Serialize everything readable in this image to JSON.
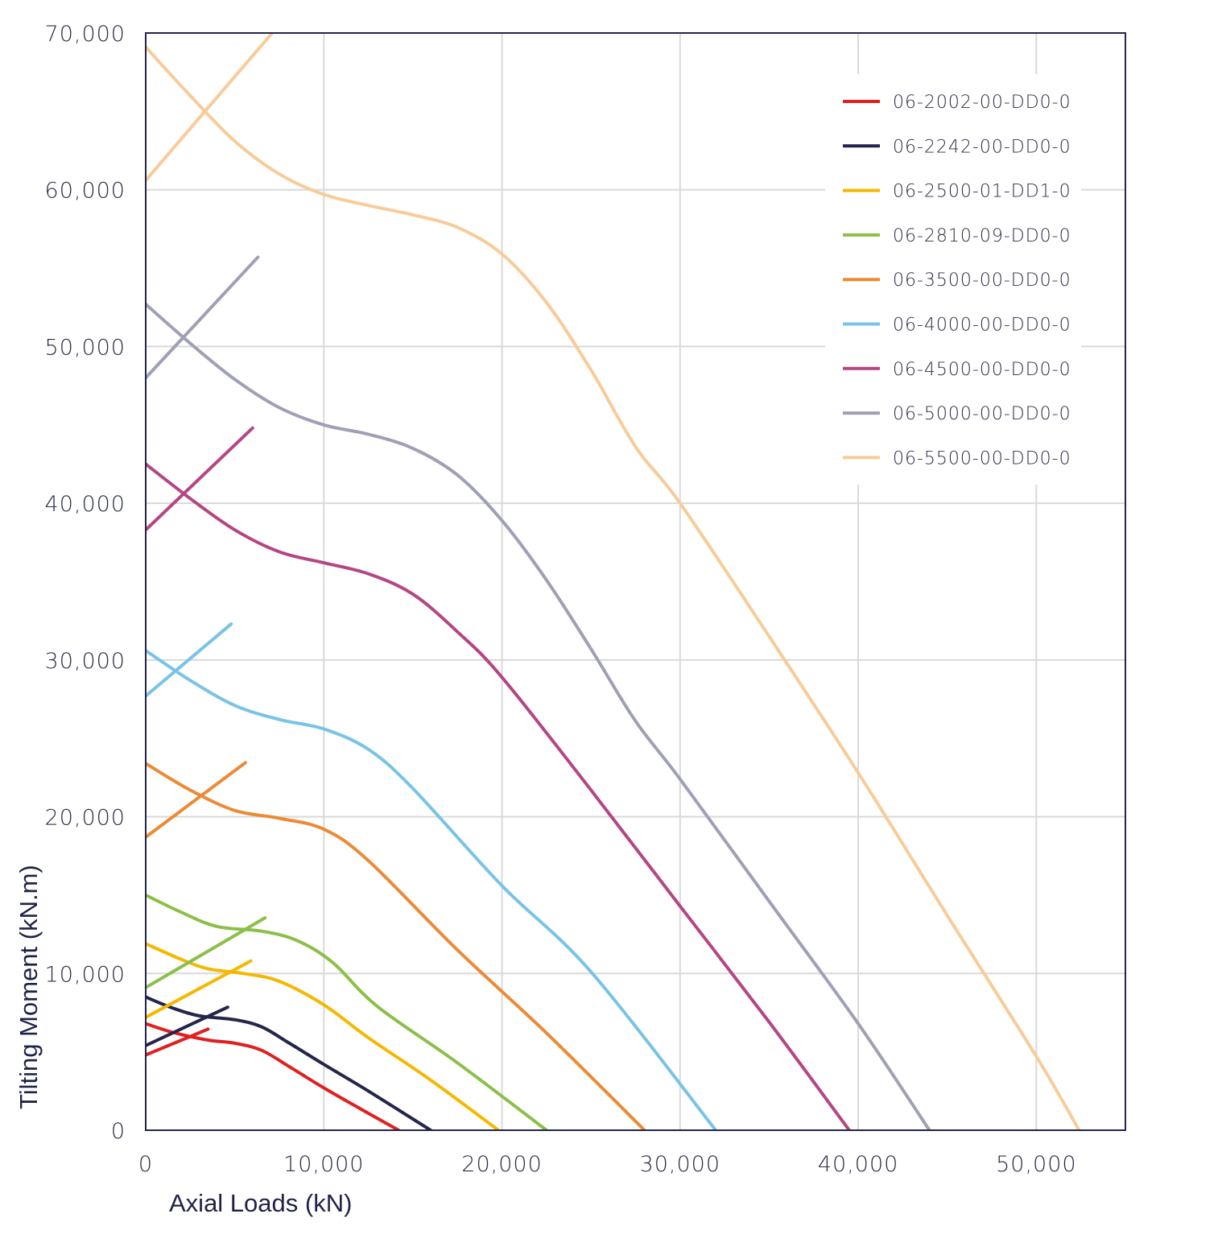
{
  "chart_data": {
    "type": "line",
    "title": "",
    "xlabel": "Axial Loads (kN)",
    "ylabel": "Tilting Moment (kN.m)",
    "xlim": [
      0,
      55000
    ],
    "ylim": [
      0,
      70000
    ],
    "x_ticks": [
      0,
      10000,
      20000,
      30000,
      40000,
      50000
    ],
    "y_ticks": [
      0,
      10000,
      20000,
      30000,
      40000,
      50000,
      60000,
      70000
    ],
    "x_tick_labels": [
      "0",
      "10,000",
      "20,000",
      "30,000",
      "40,000",
      "50,000"
    ],
    "y_tick_labels": [
      "0",
      "10,000",
      "20,000",
      "30,000",
      "40,000",
      "50,000",
      "60,000",
      "70,000"
    ],
    "grid": true,
    "legend_position": "top-right",
    "series": [
      {
        "name": "06-2002-00-DD0-0",
        "color": "#e02020",
        "curve": [
          [
            0,
            6800
          ],
          [
            1500,
            6250
          ],
          [
            3500,
            5750
          ],
          [
            5000,
            5550
          ],
          [
            6500,
            5100
          ],
          [
            8000,
            4100
          ],
          [
            10000,
            2700
          ],
          [
            12000,
            1400
          ],
          [
            14200,
            0
          ]
        ],
        "line": [
          [
            0,
            4800
          ],
          [
            3500,
            6450
          ]
        ]
      },
      {
        "name": "06-2242-00-DD0-0",
        "color": "#23254a",
        "curve": [
          [
            0,
            8500
          ],
          [
            1500,
            7800
          ],
          [
            3000,
            7300
          ],
          [
            5000,
            7050
          ],
          [
            6500,
            6600
          ],
          [
            8000,
            5600
          ],
          [
            10000,
            4200
          ],
          [
            12500,
            2500
          ],
          [
            16000,
            0
          ]
        ],
        "line": [
          [
            0,
            5400
          ],
          [
            4600,
            7850
          ]
        ]
      },
      {
        "name": "06-2500-01-DD1-0",
        "color": "#f5b800",
        "curve": [
          [
            0,
            11900
          ],
          [
            2000,
            10900
          ],
          [
            3500,
            10300
          ],
          [
            5500,
            10000
          ],
          [
            7500,
            9500
          ],
          [
            10000,
            8000
          ],
          [
            12500,
            5900
          ],
          [
            16000,
            3200
          ],
          [
            19800,
            0
          ]
        ],
        "line": [
          [
            0,
            7200
          ],
          [
            5900,
            10800
          ]
        ]
      },
      {
        "name": "06-2810-09-DD0-0",
        "color": "#8bbf48",
        "curve": [
          [
            0,
            15000
          ],
          [
            2000,
            13900
          ],
          [
            4000,
            13000
          ],
          [
            6500,
            12700
          ],
          [
            8500,
            12100
          ],
          [
            10500,
            10700
          ],
          [
            13000,
            7900
          ],
          [
            17500,
            4300
          ],
          [
            22500,
            0
          ]
        ],
        "line": [
          [
            0,
            9100
          ],
          [
            6700,
            13550
          ]
        ]
      },
      {
        "name": "06-3500-00-DD0-0",
        "color": "#ec8a35",
        "curve": [
          [
            0,
            23400
          ],
          [
            2500,
            21700
          ],
          [
            5000,
            20400
          ],
          [
            7500,
            19900
          ],
          [
            10000,
            19200
          ],
          [
            12500,
            17200
          ],
          [
            17500,
            11500
          ],
          [
            22500,
            6200
          ],
          [
            28000,
            0
          ]
        ],
        "line": [
          [
            0,
            18700
          ],
          [
            5600,
            23450
          ]
        ]
      },
      {
        "name": "06-4000-00-DD0-0",
        "color": "#78c3e6",
        "curve": [
          [
            0,
            30600
          ],
          [
            2500,
            28700
          ],
          [
            5000,
            27100
          ],
          [
            7500,
            26200
          ],
          [
            10000,
            25600
          ],
          [
            12500,
            24300
          ],
          [
            15000,
            21800
          ],
          [
            20000,
            15600
          ],
          [
            25000,
            10100
          ],
          [
            32000,
            0
          ]
        ],
        "line": [
          [
            0,
            27700
          ],
          [
            4800,
            32300
          ]
        ]
      },
      {
        "name": "06-4500-00-DD0-0",
        "color": "#b44684",
        "curve": [
          [
            0,
            42500
          ],
          [
            2500,
            40300
          ],
          [
            5000,
            38300
          ],
          [
            7500,
            36900
          ],
          [
            10000,
            36200
          ],
          [
            12500,
            35500
          ],
          [
            15000,
            34200
          ],
          [
            17500,
            31800
          ],
          [
            20000,
            28900
          ],
          [
            25000,
            21700
          ],
          [
            30000,
            14300
          ],
          [
            35000,
            6900
          ],
          [
            39500,
            0
          ]
        ],
        "line": [
          [
            0,
            38300
          ],
          [
            6000,
            44800
          ]
        ]
      },
      {
        "name": "06-5000-00-DD0-0",
        "color": "#9fa0b5",
        "curve": [
          [
            0,
            52700
          ],
          [
            2500,
            50200
          ],
          [
            5000,
            47900
          ],
          [
            7500,
            46100
          ],
          [
            10000,
            45000
          ],
          [
            12500,
            44400
          ],
          [
            15000,
            43500
          ],
          [
            17500,
            41800
          ],
          [
            20000,
            38900
          ],
          [
            22500,
            35100
          ],
          [
            25000,
            30700
          ],
          [
            27500,
            26100
          ],
          [
            30000,
            22400
          ],
          [
            35000,
            14600
          ],
          [
            40000,
            6800
          ],
          [
            44000,
            0
          ]
        ],
        "line": [
          [
            0,
            48000
          ],
          [
            6300,
            55700
          ]
        ]
      },
      {
        "name": "06-5500-00-DD0-0",
        "color": "#f8cb99",
        "curve": [
          [
            0,
            69100
          ],
          [
            2500,
            66000
          ],
          [
            5000,
            63100
          ],
          [
            7500,
            61000
          ],
          [
            10000,
            59700
          ],
          [
            12500,
            59000
          ],
          [
            15000,
            58400
          ],
          [
            17500,
            57600
          ],
          [
            20000,
            55900
          ],
          [
            22500,
            52800
          ],
          [
            25000,
            48500
          ],
          [
            27500,
            43600
          ],
          [
            30000,
            40000
          ],
          [
            35000,
            31500
          ],
          [
            40000,
            22800
          ],
          [
            45000,
            13700
          ],
          [
            50000,
            4700
          ],
          [
            52400,
            0
          ]
        ],
        "line": [
          [
            0,
            60600
          ],
          [
            7100,
            70000
          ]
        ]
      }
    ]
  }
}
